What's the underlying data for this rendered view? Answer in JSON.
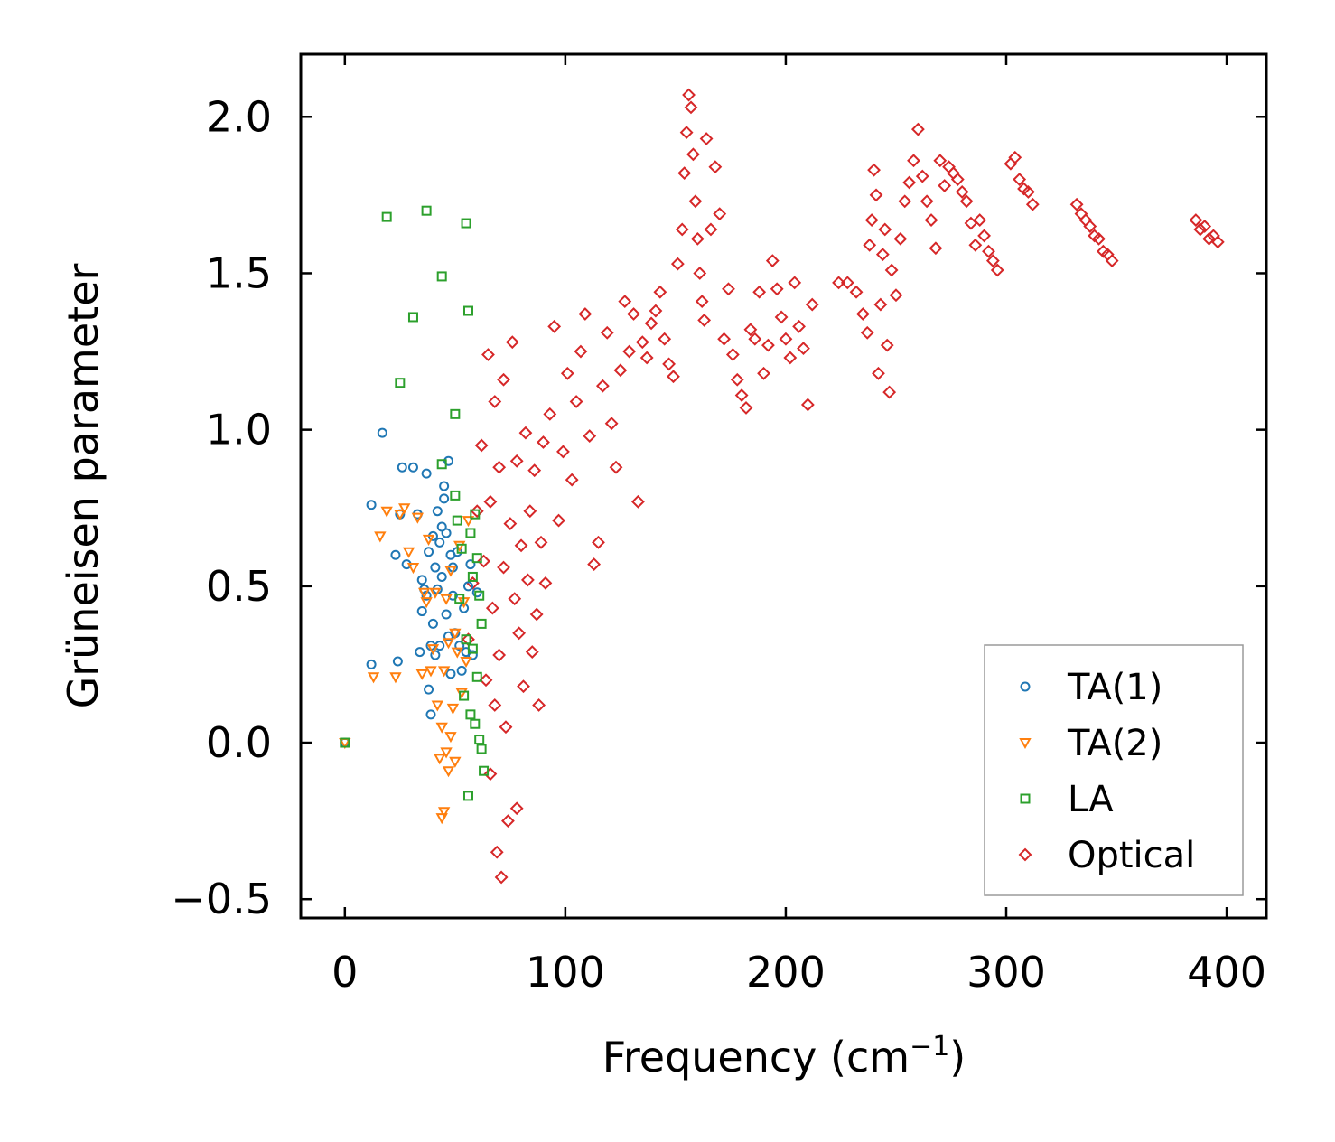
{
  "chart_data": {
    "type": "scatter",
    "xlabel": "Frequency (cm",
    "xlabel_sup": "−1",
    "xlabel_close": ")",
    "ylabel": "Grüneisen parameter",
    "xlim": [
      -20,
      418
    ],
    "ylim": [
      -0.56,
      2.2
    ],
    "xticks": [
      0,
      100,
      200,
      300,
      400
    ],
    "xtick_labels": [
      "0",
      "100",
      "200",
      "300",
      "400"
    ],
    "yticks": [
      -0.5,
      0.0,
      0.5,
      1.0,
      1.5,
      2.0
    ],
    "ytick_labels": [
      "−0.5",
      "0.0",
      "0.5",
      "1.0",
      "1.5",
      "2.0"
    ],
    "legend_position": "lower-right",
    "series": [
      {
        "name": "TA(1)",
        "color": "#1f77b4",
        "marker": "circle",
        "x": [
          0,
          12,
          12,
          17,
          23,
          24,
          25,
          26,
          28,
          31,
          33,
          34,
          35,
          35,
          36,
          37,
          37,
          38,
          38,
          39,
          39,
          40,
          40,
          41,
          41,
          42,
          42,
          43,
          43,
          44,
          44,
          45,
          45,
          46,
          46,
          47,
          47,
          48,
          48,
          49,
          49,
          50,
          51,
          52,
          53,
          54,
          55,
          56,
          57,
          58,
          60
        ],
        "y": [
          0.0,
          0.76,
          0.25,
          0.99,
          0.6,
          0.26,
          0.73,
          0.88,
          0.57,
          0.88,
          0.73,
          0.29,
          0.52,
          0.42,
          0.49,
          0.86,
          0.47,
          0.61,
          0.17,
          0.09,
          0.31,
          0.38,
          0.66,
          0.56,
          0.28,
          0.74,
          0.49,
          0.64,
          0.31,
          0.69,
          0.53,
          0.82,
          0.78,
          0.67,
          0.41,
          0.9,
          0.34,
          0.6,
          0.22,
          0.56,
          0.47,
          0.35,
          0.61,
          0.31,
          0.23,
          0.43,
          0.29,
          0.5,
          0.57,
          0.28,
          0.48
        ]
      },
      {
        "name": "TA(2)",
        "color": "#ff7f0e",
        "marker": "triangle-down",
        "x": [
          0,
          13,
          16,
          19,
          23,
          25,
          27,
          29,
          31,
          33,
          35,
          36,
          37,
          38,
          39,
          40,
          41,
          42,
          43,
          44,
          44,
          45,
          45,
          46,
          46,
          47,
          47,
          48,
          48,
          49,
          50,
          50,
          51,
          52,
          53,
          54,
          55,
          56
        ],
        "y": [
          0.0,
          0.21,
          0.66,
          0.74,
          0.21,
          0.73,
          0.75,
          0.61,
          0.56,
          0.72,
          0.22,
          0.48,
          0.45,
          0.65,
          0.23,
          0.3,
          0.48,
          0.12,
          -0.05,
          -0.24,
          0.05,
          -0.22,
          0.23,
          -0.03,
          0.46,
          0.32,
          -0.09,
          0.55,
          0.02,
          0.11,
          -0.06,
          0.35,
          0.29,
          0.63,
          0.16,
          0.45,
          0.26,
          0.71
        ]
      },
      {
        "name": "LA",
        "color": "#2ca02c",
        "marker": "square",
        "x": [
          0,
          19,
          25,
          31,
          37,
          44,
          44,
          50,
          50,
          51,
          52,
          53,
          54,
          55,
          55,
          56,
          56,
          57,
          57,
          58,
          58,
          59,
          59,
          60,
          60,
          61,
          61,
          62,
          62,
          63
        ],
        "y": [
          0.0,
          1.68,
          1.15,
          1.36,
          1.7,
          1.49,
          0.89,
          1.05,
          0.79,
          0.71,
          0.46,
          0.62,
          0.15,
          1.66,
          0.33,
          1.38,
          -0.17,
          0.67,
          0.09,
          0.53,
          0.3,
          0.73,
          0.06,
          0.59,
          0.21,
          0.01,
          0.47,
          -0.02,
          0.38,
          -0.09
        ]
      },
      {
        "name": "Optical",
        "color": "#d62728",
        "marker": "diamond",
        "x": [
          56,
          58,
          60,
          62,
          63,
          64,
          65,
          66,
          66,
          67,
          68,
          68,
          69,
          70,
          70,
          71,
          72,
          72,
          73,
          74,
          75,
          76,
          77,
          78,
          78,
          79,
          80,
          81,
          82,
          83,
          84,
          85,
          86,
          87,
          88,
          89,
          90,
          91,
          93,
          95,
          97,
          99,
          101,
          103,
          105,
          107,
          109,
          111,
          113,
          115,
          117,
          119,
          121,
          123,
          125,
          127,
          129,
          131,
          133,
          135,
          137,
          139,
          141,
          143,
          145,
          147,
          149,
          151,
          153,
          154,
          155,
          156,
          157,
          158,
          159,
          160,
          161,
          162,
          163,
          164,
          166,
          168,
          170,
          172,
          174,
          176,
          178,
          180,
          182,
          184,
          186,
          188,
          190,
          192,
          194,
          196,
          198,
          200,
          202,
          204,
          206,
          208,
          210,
          212,
          224,
          228,
          232,
          235,
          237,
          238,
          239,
          240,
          241,
          242,
          243,
          244,
          245,
          246,
          247,
          248,
          250,
          252,
          254,
          256,
          258,
          260,
          262,
          264,
          266,
          268,
          270,
          272,
          274,
          276,
          278,
          280,
          282,
          284,
          286,
          288,
          290,
          292,
          294,
          296,
          302,
          304,
          306,
          308,
          310,
          312,
          332,
          334,
          336,
          338,
          340,
          342,
          344,
          346,
          348,
          386,
          388,
          390,
          392,
          394,
          396
        ],
        "y": [
          0.33,
          0.51,
          0.74,
          0.95,
          0.58,
          0.2,
          1.24,
          0.77,
          -0.1,
          0.43,
          1.09,
          0.12,
          -0.35,
          0.88,
          0.28,
          -0.43,
          1.16,
          0.56,
          0.05,
          -0.25,
          0.7,
          1.28,
          0.46,
          0.9,
          -0.21,
          0.35,
          0.63,
          0.18,
          0.99,
          0.52,
          0.74,
          0.29,
          0.87,
          0.41,
          0.12,
          0.64,
          0.96,
          0.51,
          1.05,
          1.33,
          0.71,
          0.93,
          1.18,
          0.84,
          1.09,
          1.25,
          1.37,
          0.98,
          0.57,
          0.64,
          1.14,
          1.31,
          1.02,
          0.88,
          1.19,
          1.41,
          1.25,
          1.37,
          0.77,
          1.28,
          1.23,
          1.34,
          1.38,
          1.44,
          1.29,
          1.21,
          1.17,
          1.53,
          1.64,
          1.82,
          1.95,
          2.07,
          2.03,
          1.88,
          1.73,
          1.61,
          1.5,
          1.41,
          1.35,
          1.93,
          1.64,
          1.84,
          1.69,
          1.29,
          1.45,
          1.24,
          1.16,
          1.11,
          1.07,
          1.32,
          1.29,
          1.44,
          1.18,
          1.27,
          1.54,
          1.45,
          1.36,
          1.29,
          1.23,
          1.47,
          1.33,
          1.26,
          1.08,
          1.4,
          1.47,
          1.47,
          1.44,
          1.37,
          1.31,
          1.59,
          1.67,
          1.83,
          1.75,
          1.18,
          1.4,
          1.56,
          1.64,
          1.27,
          1.12,
          1.51,
          1.43,
          1.61,
          1.73,
          1.79,
          1.86,
          1.96,
          1.81,
          1.73,
          1.67,
          1.58,
          1.86,
          1.78,
          1.84,
          1.82,
          1.8,
          1.76,
          1.73,
          1.66,
          1.59,
          1.67,
          1.62,
          1.57,
          1.54,
          1.51,
          1.85,
          1.87,
          1.8,
          1.77,
          1.76,
          1.72,
          1.72,
          1.69,
          1.67,
          1.65,
          1.62,
          1.61,
          1.57,
          1.56,
          1.54,
          1.67,
          1.64,
          1.65,
          1.61,
          1.62,
          1.6
        ]
      }
    ]
  }
}
